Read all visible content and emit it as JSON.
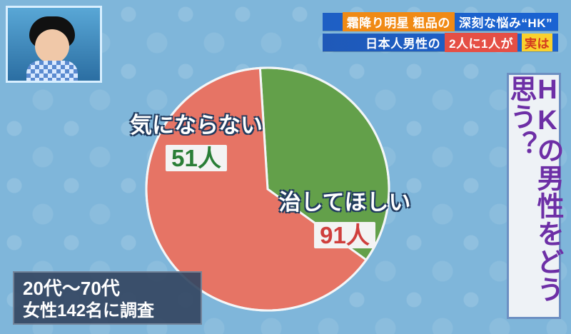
{
  "header": {
    "line1_left": "霜降り明星 粗品の",
    "line1_right": "深刻な悩み“HK”",
    "line2_left": "日本人男性の",
    "line2_mid": "2人に1人が",
    "line2_badge": "実は"
  },
  "question": {
    "text": "HKの男性をどう思う？"
  },
  "survey": {
    "line1": "20代～70代",
    "line2": "女性142名に調査"
  },
  "colors": {
    "green_slice": "#63a04a",
    "red_slice": "#e67465",
    "outline": "#f3f6f8",
    "green_value": "#2a7e37",
    "red_value": "#cf3f3d"
  },
  "chart_data": {
    "type": "pie",
    "title": "HKの男性をどう思う？",
    "slices": [
      {
        "label": "気にならない",
        "value": 51,
        "display_value": "51人",
        "color": "#63a04a"
      },
      {
        "label": "治してほしい",
        "value": 91,
        "display_value": "91人",
        "color": "#e67465"
      }
    ]
  }
}
